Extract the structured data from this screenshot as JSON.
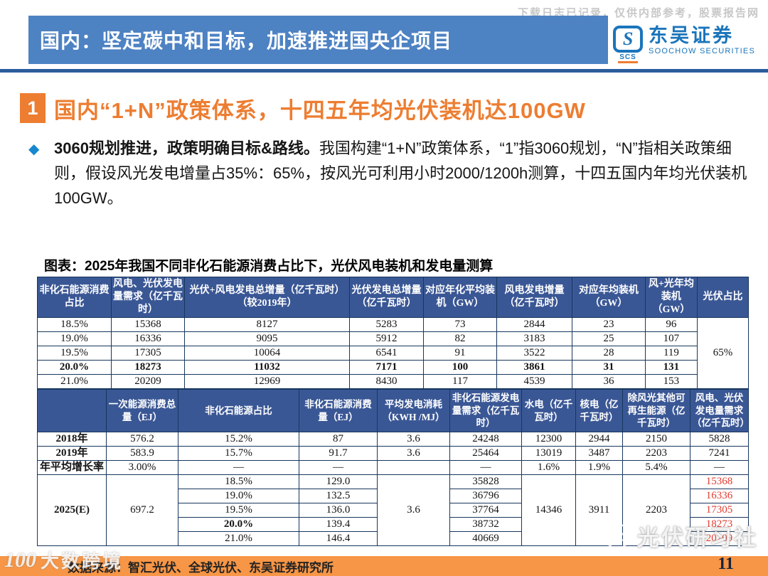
{
  "watermark_top": {
    "text": "下载日志已记录，仅供内部参考，股票报告网"
  },
  "header": {
    "title": "国内：坚定碳中和目标，加速推进国央企项目",
    "logo": {
      "badge": "S",
      "scs": "SCS",
      "cn": "东吴证券",
      "en": "SOOCHOW SECURITIES"
    }
  },
  "section": {
    "number": "1",
    "title": "国内“1+N”政策体系，十四五年均光伏装机达100GW"
  },
  "paragraph": {
    "lead_bold": "3060规划推进，政策明确目标&路线。",
    "body": "我国构建“1+N”政策体系，“1”指3060规划，“N”指相关政策细则，假设风光发电增量占35%：65%，按风光可利用小时2000/1200h测算，十四五国内年均光伏装机100GW。"
  },
  "figure": {
    "title": "图表：2025年我国不同非化石能源消费占比下，光伏风电装机和发电量测算"
  },
  "tables": {
    "t1": {
      "colw": [
        10.4,
        10.3,
        23.2,
        10.4,
        10.3,
        10.6,
        10.3,
        7.3,
        7.2
      ],
      "rows": [
        {
          "h": 57,
          "cells": [
            {
              "t": "非化石能源消费占比",
              "cls": "th"
            },
            {
              "t": "风电、光伏发电量需求（亿千瓦时）",
              "cls": "th"
            },
            {
              "t": "光伏+风电发电总增量（亿千瓦时）（较2019年）",
              "cls": "th"
            },
            {
              "t": "光伏发电总增量（亿千瓦时）",
              "cls": "th"
            },
            {
              "t": "对应年化平均装机（GW）",
              "cls": "th"
            },
            {
              "t": "风电发电增量（亿千瓦时）",
              "cls": "th"
            },
            {
              "t": "对应年均装机（GW）",
              "cls": "th"
            },
            {
              "t": "风+光年均装机（GW）",
              "cls": "th"
            },
            {
              "t": "光伏占比",
              "cls": "th"
            }
          ]
        },
        {
          "cells": [
            "18.5%",
            "15368",
            "8127",
            "5283",
            "73",
            "2844",
            "23",
            "96",
            {
              "t": "65%",
              "rs": 5
            }
          ]
        },
        {
          "cells": [
            "19.0%",
            "16336",
            "9095",
            "5912",
            "82",
            "3183",
            "25",
            "107"
          ]
        },
        {
          "cells": [
            "19.5%",
            "17305",
            "10064",
            "6541",
            "91",
            "3522",
            "28",
            "119"
          ]
        },
        {
          "cells": [
            {
              "t": "20.0%",
              "cls": "b"
            },
            {
              "t": "18273",
              "cls": "b"
            },
            {
              "t": "11032",
              "cls": "b"
            },
            {
              "t": "7171",
              "cls": "b"
            },
            {
              "t": "100",
              "cls": "b"
            },
            {
              "t": "3861",
              "cls": "b"
            },
            {
              "t": "31",
              "cls": "b"
            },
            {
              "t": "131",
              "cls": "b"
            }
          ]
        },
        {
          "cells": [
            "21.0%",
            "20209",
            "12969",
            "8430",
            "117",
            "4539",
            "36",
            "153"
          ]
        }
      ]
    },
    "t2": {
      "colw": [
        9.7,
        10.1,
        17.0,
        11.0,
        10.2,
        10.1,
        7.6,
        6.6,
        9.5,
        8.2
      ],
      "rows": [
        {
          "h": 60,
          "cells": [
            {
              "t": "",
              "cls": "th"
            },
            {
              "t": "一次能源消费总量（EJ）",
              "cls": "th"
            },
            {
              "t": "非化石能源占比",
              "cls": "th"
            },
            {
              "t": "非化石能源消费量（EJ）",
              "cls": "th"
            },
            {
              "t": "平均发电消耗（KWH /MJ）",
              "cls": "th"
            },
            {
              "t": "非化石能源发电量需求（亿千瓦时）",
              "cls": "th"
            },
            {
              "t": "水电（亿千瓦时）",
              "cls": "th"
            },
            {
              "t": "核电（亿千瓦时）",
              "cls": "th"
            },
            {
              "t": "除风光其他可再生能源（亿千瓦时）",
              "cls": "th"
            },
            {
              "t": "风电、光伏发电量需求（亿千瓦时）",
              "cls": "th"
            }
          ]
        },
        {
          "cells": [
            {
              "t": "2018年",
              "cls": "lbl"
            },
            "576.2",
            "15.2%",
            "87",
            "3.6",
            "24248",
            "12300",
            "2944",
            "2150",
            "5828"
          ]
        },
        {
          "cells": [
            {
              "t": "2019年",
              "cls": "lbl"
            },
            "583.9",
            "15.7%",
            "91.7",
            "3.6",
            "25464",
            "13019",
            "3487",
            "2203",
            "7241"
          ]
        },
        {
          "cells": [
            {
              "t": "年平均增长率",
              "cls": "lbl"
            },
            "3.00%",
            "—",
            "—",
            "",
            "—",
            "1.6%",
            "1.9%",
            "5.4%",
            "—"
          ]
        },
        {
          "cells": [
            {
              "t": "2025(E)",
              "cls": "lbl",
              "rs": 5
            },
            {
              "t": "697.2",
              "rs": 5
            },
            "18.5%",
            "129.0",
            {
              "t": "3.6",
              "rs": 5
            },
            "35828",
            {
              "t": "14346",
              "rs": 5
            },
            {
              "t": "3911",
              "rs": 5
            },
            {
              "t": "2203",
              "rs": 5
            },
            {
              "t": "15368",
              "cls": "r"
            }
          ]
        },
        {
          "cells": [
            "19.0%",
            "132.5",
            "36796",
            {
              "t": "16336",
              "cls": "r"
            }
          ]
        },
        {
          "cells": [
            "19.5%",
            "136.0",
            "37764",
            {
              "t": "17305",
              "cls": "r"
            }
          ]
        },
        {
          "cells": [
            {
              "t": "20.0%",
              "cls": "b"
            },
            "139.4",
            "38732",
            {
              "t": "18273",
              "cls": "r"
            }
          ]
        },
        {
          "cells": [
            "21.0%",
            "146.4",
            "40669",
            {
              "t": "20209",
              "cls": "r"
            }
          ]
        }
      ]
    }
  },
  "footer": {
    "source": "数据来源：智汇光伏、全球光伏、东吴证券研究所",
    "page": "11"
  },
  "watermarks": {
    "bottom_left": {
      "icon": "100",
      "text": "大数跨境"
    },
    "bottom_right": {
      "text": "光伏研习社"
    }
  },
  "colors": {
    "header_bar": "#4d82c3",
    "divider": "#2b5d9b",
    "accent_orange": "#ed7d31",
    "footer_bar": "#f79646",
    "table_header_bg": "#3a5795",
    "table_border": "#17365d",
    "highlight_red": "#e23a2e",
    "bullet_blue": "#1787ce",
    "logo_blue": "#1b75bb"
  }
}
